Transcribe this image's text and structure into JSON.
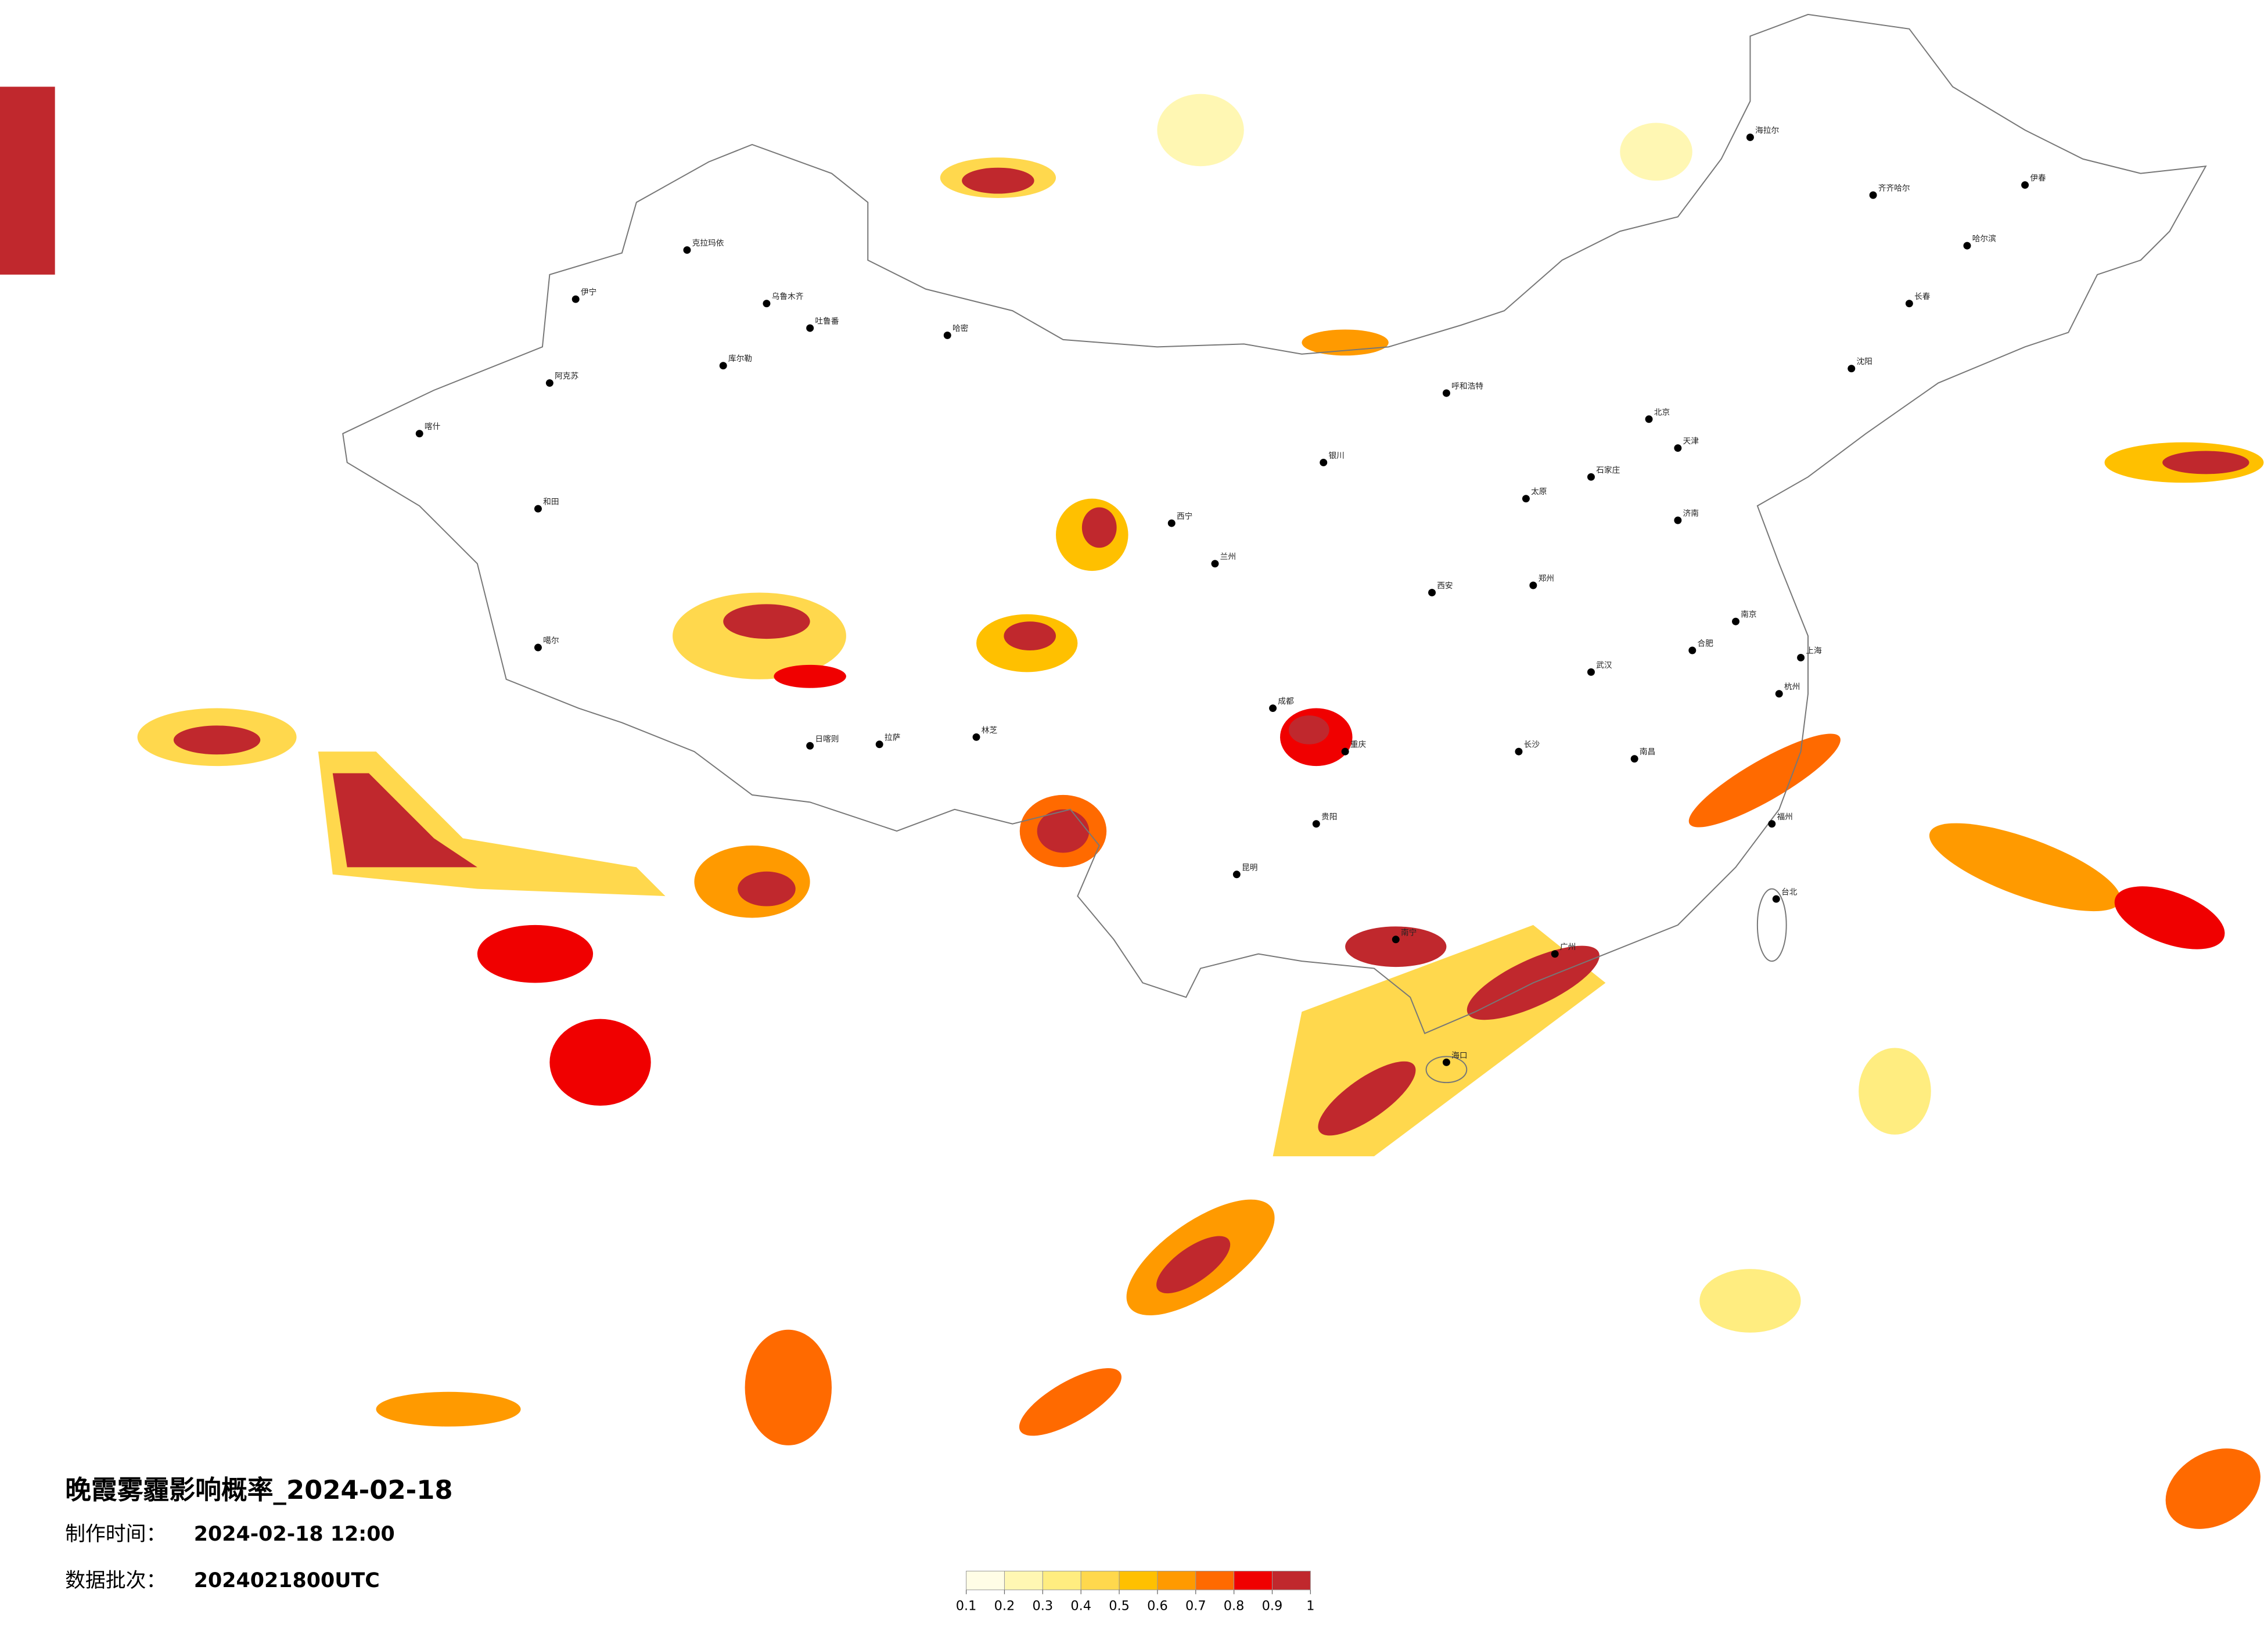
{
  "title": "晚霞雾霾影响概率_2024-02-18",
  "made_time": {
    "label": "制作时间：",
    "value": "2024-02-18 12:00"
  },
  "batch": {
    "label": "数据批次：",
    "value": "2024021800UTC"
  },
  "colorbar": {
    "ticks": [
      0.1,
      0.2,
      0.3,
      0.4,
      0.5,
      0.6,
      0.7,
      0.8,
      0.9,
      1
    ],
    "colors": [
      "#fffde6",
      "#fff7b3",
      "#ffed80",
      "#ffd84d",
      "#ffc000",
      "#ff9a00",
      "#ff6a00",
      "#f00000",
      "#c0282d"
    ]
  },
  "cities": [
    "乌鲁木齐",
    "克拉玛依",
    "伊宁",
    "阿克苏",
    "喀什",
    "和田",
    "哈密",
    "库尔勒",
    "吐鲁番",
    "拉萨",
    "日喀则",
    "林芝",
    "噶尔",
    "西宁",
    "兰州",
    "银川",
    "呼和浩特",
    "北京",
    "天津",
    "石家庄",
    "太原",
    "济南",
    "郑州",
    "西安",
    "成都",
    "重庆",
    "贵阳",
    "昆明",
    "南宁",
    "广州",
    "长沙",
    "武汉",
    "南昌",
    "合肥",
    "南京",
    "上海",
    "杭州",
    "福州",
    "台北",
    "海口",
    "哈尔滨",
    "长春",
    "沈阳",
    "海拉尔",
    "齐齐哈尔",
    "伊春"
  ]
}
